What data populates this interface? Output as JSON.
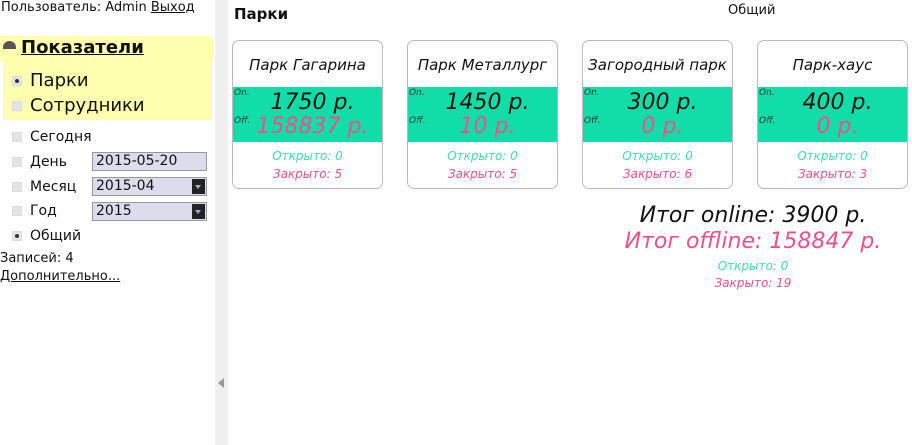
{
  "user": {
    "label": "Пользователь: Admin",
    "logout": "Выход"
  },
  "sidebar": {
    "header": "Показатели",
    "types": [
      {
        "label": "Парки",
        "checked": true
      },
      {
        "label": "Сотрудники",
        "checked": false
      }
    ],
    "periods": [
      {
        "label": "Сегодня",
        "checked": false
      },
      {
        "label": "День",
        "checked": false,
        "value": "2015-05-20"
      },
      {
        "label": "Месяц",
        "checked": false,
        "value": "2015-04"
      },
      {
        "label": "Год",
        "checked": false,
        "value": "2015"
      },
      {
        "label": "Общий",
        "checked": true
      }
    ],
    "records": "Записей: 4",
    "more": "Дополнительно..."
  },
  "main": {
    "title": "Парки",
    "mode": "Общий",
    "on_label": "On.",
    "off_label": "Off.",
    "cards": [
      {
        "name": "Парк Гагарина",
        "online": "1750 р.",
        "offline": "158837 р.",
        "open": "Открыто: 0",
        "closed": "Закрыто: 5"
      },
      {
        "name": "Парк Металлург",
        "online": "1450 р.",
        "offline": "10 р.",
        "open": "Открыто: 0",
        "closed": "Закрыто: 5"
      },
      {
        "name": "Загородный парк",
        "online": "300 р.",
        "offline": "0 р.",
        "open": "Открыто: 0",
        "closed": "Закрыто: 6"
      },
      {
        "name": "Парк-хаус",
        "online": "400 р.",
        "offline": "0 р.",
        "open": "Открыто: 0",
        "closed": "Закрыто: 3"
      }
    ],
    "totals": {
      "online": "Итог online: 3900 р.",
      "offline": "Итог offline: 158847 р.",
      "open": "Открыто: 0",
      "closed": "Закрыто: 19"
    }
  },
  "colors": {
    "band": "#11dda8",
    "offline": "#f0508a",
    "open": "#44ddb0",
    "highlight": "#ffffb0"
  }
}
